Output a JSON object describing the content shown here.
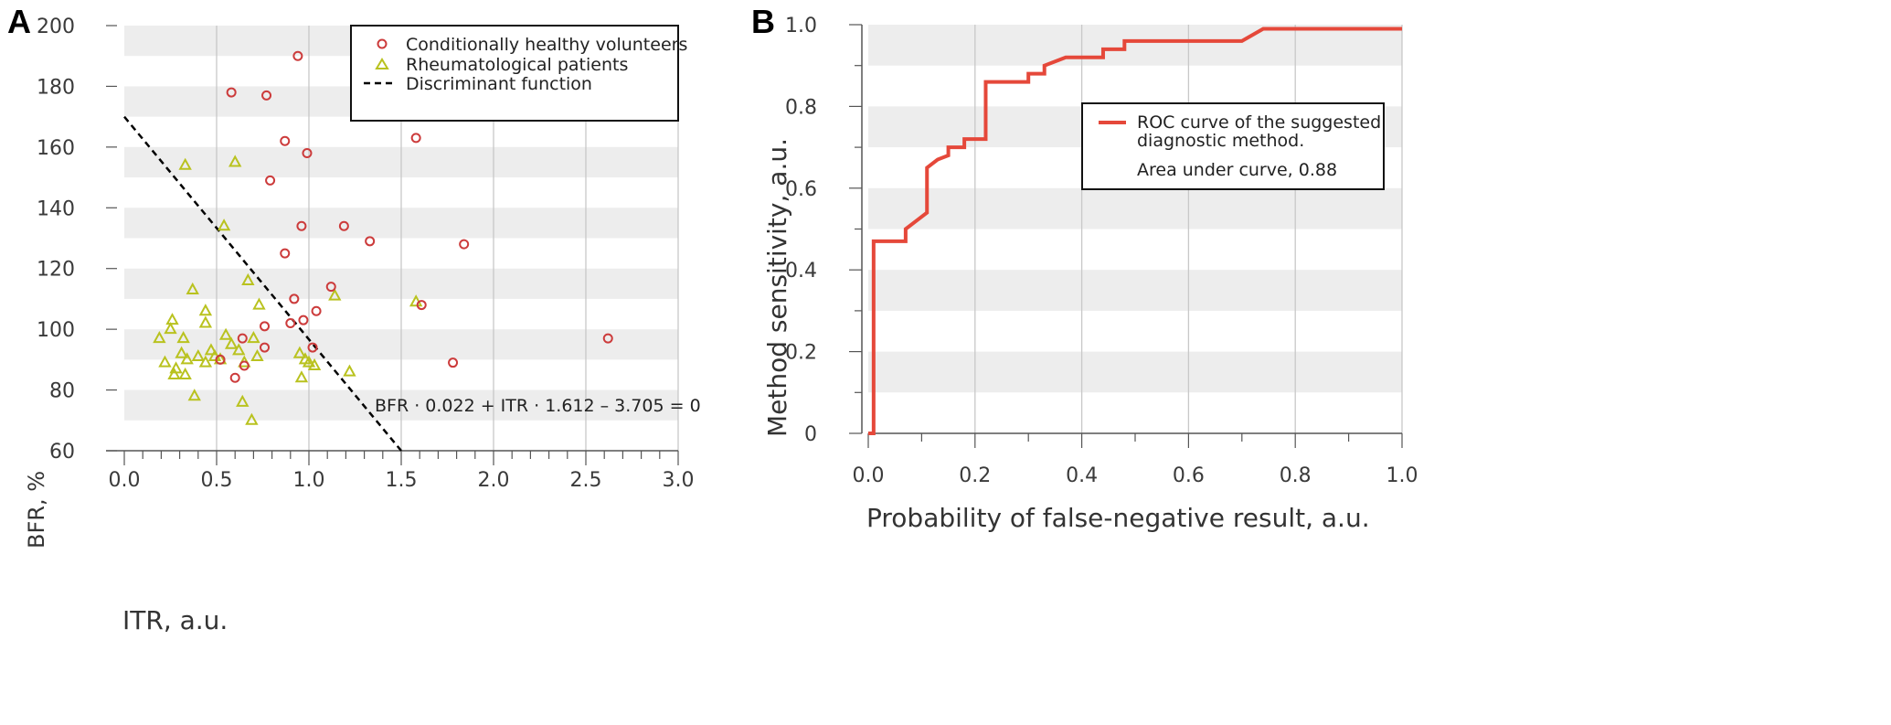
{
  "chart_data": [
    {
      "panel": "A",
      "type": "scatter",
      "xlabel": "ITR, a.u.",
      "ylabel": "BFR, %",
      "xlim": [
        0.0,
        3.0
      ],
      "ylim": [
        60,
        200
      ],
      "x_ticks": [
        "0.0",
        "0.5",
        "1.0",
        "1.5",
        "2.0",
        "2.5",
        "3.0"
      ],
      "y_ticks": [
        "60",
        "80",
        "100",
        "120",
        "140",
        "160",
        "180",
        "200"
      ],
      "legend_position": "top-right",
      "series": [
        {
          "name": "Conditionally healthy volunteers",
          "marker": "circle",
          "color": "#cc3b3b",
          "points": [
            [
              0.94,
              190
            ],
            [
              0.58,
              178
            ],
            [
              0.77,
              177
            ],
            [
              0.87,
              162
            ],
            [
              1.58,
              163
            ],
            [
              0.99,
              158
            ],
            [
              0.79,
              149
            ],
            [
              0.96,
              134
            ],
            [
              1.19,
              134
            ],
            [
              1.33,
              129
            ],
            [
              0.87,
              125
            ],
            [
              1.84,
              128
            ],
            [
              1.12,
              114
            ],
            [
              0.92,
              110
            ],
            [
              1.61,
              108
            ],
            [
              1.04,
              106
            ],
            [
              0.97,
              103
            ],
            [
              0.9,
              102
            ],
            [
              0.76,
              101
            ],
            [
              0.64,
              97
            ],
            [
              2.62,
              97
            ],
            [
              0.76,
              94
            ],
            [
              1.02,
              94
            ],
            [
              0.52,
              90
            ],
            [
              1.78,
              89
            ],
            [
              0.65,
              88
            ],
            [
              0.6,
              84
            ]
          ]
        },
        {
          "name": "Rheumatological patients",
          "marker": "triangle",
          "color": "#b9c21f",
          "points": [
            [
              0.33,
              154
            ],
            [
              0.6,
              155
            ],
            [
              0.54,
              134
            ],
            [
              0.67,
              116
            ],
            [
              0.37,
              113
            ],
            [
              1.14,
              111
            ],
            [
              1.58,
              109
            ],
            [
              0.73,
              108
            ],
            [
              0.44,
              106
            ],
            [
              0.26,
              103
            ],
            [
              0.19,
              97
            ],
            [
              0.25,
              100
            ],
            [
              0.32,
              97
            ],
            [
              0.44,
              102
            ],
            [
              0.55,
              98
            ],
            [
              0.7,
              97
            ],
            [
              0.58,
              95
            ],
            [
              0.62,
              93
            ],
            [
              0.31,
              92
            ],
            [
              0.34,
              90
            ],
            [
              0.47,
              93
            ],
            [
              0.52,
              90
            ],
            [
              0.22,
              89
            ],
            [
              0.28,
              87
            ],
            [
              0.44,
              89
            ],
            [
              0.49,
              91
            ],
            [
              0.72,
              91
            ],
            [
              0.65,
              89
            ],
            [
              0.95,
              92
            ],
            [
              0.98,
              90
            ],
            [
              1.0,
              89
            ],
            [
              1.03,
              88
            ],
            [
              0.27,
              85
            ],
            [
              0.33,
              85
            ],
            [
              0.4,
              91
            ],
            [
              0.96,
              84
            ],
            [
              1.22,
              86
            ],
            [
              0.38,
              78
            ],
            [
              0.64,
              76
            ],
            [
              0.69,
              70
            ]
          ]
        },
        {
          "name": "Discriminant function",
          "marker": "dashed-line",
          "color": "#000000",
          "points": [
            [
              0.0,
              170
            ],
            [
              1.5,
              60
            ]
          ]
        }
      ],
      "annotation": "BFR · 0.022 + ITR · 1.612 – 3.705 = 0"
    },
    {
      "panel": "B",
      "type": "line",
      "xlabel": "Probability of false-negative result, a.u.",
      "ylabel": "Method sensitivity, a.u.",
      "xlim": [
        0.0,
        1.0
      ],
      "ylim": [
        0.0,
        1.0
      ],
      "x_ticks": [
        "0.0",
        "0.2",
        "0.4",
        "0.6",
        "0.8",
        "1.0"
      ],
      "y_ticks": [
        "0",
        "0.2",
        "0.4",
        "0.6",
        "0.8",
        "1.0"
      ],
      "legend_position": "top-right",
      "series": [
        {
          "name": "ROC curve of the suggested diagnostic method.",
          "color": "#e5483a",
          "x": [
            0.0,
            0.0,
            0.01,
            0.01,
            0.07,
            0.07,
            0.09,
            0.11,
            0.11,
            0.13,
            0.15,
            0.15,
            0.18,
            0.18,
            0.22,
            0.22,
            0.26,
            0.3,
            0.3,
            0.33,
            0.33,
            0.37,
            0.44,
            0.44,
            0.48,
            0.48,
            0.7,
            0.74,
            1.0
          ],
          "y": [
            0.0,
            0.0,
            0.0,
            0.47,
            0.47,
            0.5,
            0.52,
            0.54,
            0.65,
            0.67,
            0.68,
            0.7,
            0.7,
            0.72,
            0.72,
            0.86,
            0.86,
            0.86,
            0.88,
            0.88,
            0.9,
            0.92,
            0.92,
            0.94,
            0.94,
            0.96,
            0.96,
            0.99,
            0.99
          ]
        }
      ],
      "legend_note": "Area under curve, 0.88",
      "auc": 0.88
    }
  ],
  "panels": {
    "a": {
      "letter": "A",
      "xlabel": "ITR, a.u.",
      "ylabel": "BFR, %",
      "legend": {
        "healthy": "Conditionally healthy volunteers",
        "patients": "Rheumatological patients",
        "discriminant": "Discriminant function"
      },
      "annotation": "BFR · 0.022 + ITR · 1.612 – 3.705 = 0"
    },
    "b": {
      "letter": "B",
      "xlabel": "Probability of false-negative result, a.u.",
      "ylabel": "Method sensitivity, a.u.",
      "legend": {
        "line1": "ROC  curve of the suggested",
        "line2": "diagnostic method.",
        "note": "Area under curve, 0.88"
      }
    }
  },
  "colors": {
    "healthy": "#cc3b3b",
    "patients": "#b9c21f",
    "roc": "#e5483a",
    "band": "#ededed",
    "grid": "#c8c8c8"
  }
}
